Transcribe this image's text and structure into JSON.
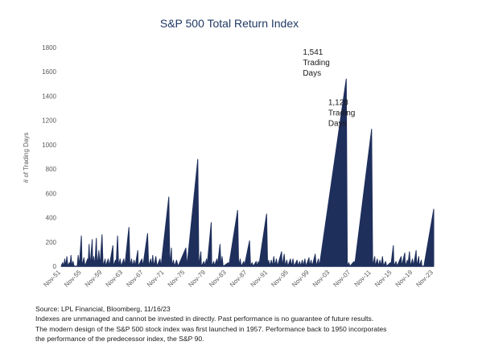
{
  "chart_data": {
    "type": "area",
    "title": "S&P 500 Total Return Index",
    "ylabel": "# of Trading Days",
    "xlabel": "",
    "ylim": [
      0,
      1800
    ],
    "yticks": [
      0,
      200,
      400,
      600,
      800,
      1000,
      1200,
      1400,
      1600,
      1800
    ],
    "xlim": [
      1951.9,
      2023.9
    ],
    "xtick_labels": [
      "Nov-51",
      "Nov-55",
      "Nov-59",
      "Nov-63",
      "Nov-67",
      "Nov-71",
      "Nov-75",
      "Nov-79",
      "Nov-83",
      "Nov-87",
      "Nov-91",
      "Nov-95",
      "Nov-99",
      "Nov-03",
      "Nov-07",
      "Nov-11",
      "Nov-15",
      "Nov-19",
      "Nov-23"
    ],
    "grid": false,
    "legend": "none",
    "color": "#1f2f5c",
    "series": [
      {
        "values": [
          [
            1951.9,
            0
          ],
          [
            1952.2,
            30
          ],
          [
            1952.4,
            0
          ],
          [
            1952.6,
            60
          ],
          [
            1952.8,
            0
          ],
          [
            1953.0,
            80
          ],
          [
            1953.2,
            0
          ],
          [
            1953.5,
            30
          ],
          [
            1953.6,
            0
          ],
          [
            1953.8,
            90
          ],
          [
            1954.0,
            0
          ],
          [
            1954.2,
            40
          ],
          [
            1954.4,
            0
          ],
          [
            1955.0,
            0
          ],
          [
            1955.2,
            90
          ],
          [
            1955.4,
            0
          ],
          [
            1955.8,
            250
          ],
          [
            1955.95,
            0
          ],
          [
            1956.3,
            70
          ],
          [
            1956.5,
            0
          ],
          [
            1957.0,
            60
          ],
          [
            1957.1,
            0
          ],
          [
            1957.3,
            180
          ],
          [
            1957.5,
            0
          ],
          [
            1957.9,
            220
          ],
          [
            1958.0,
            0
          ],
          [
            1958.2,
            80
          ],
          [
            1958.4,
            0
          ],
          [
            1958.7,
            230
          ],
          [
            1958.85,
            0
          ],
          [
            1959.2,
            130
          ],
          [
            1959.4,
            0
          ],
          [
            1959.8,
            260
          ],
          [
            1960.0,
            0
          ],
          [
            1960.4,
            60
          ],
          [
            1960.5,
            0
          ],
          [
            1961.0,
            60
          ],
          [
            1961.2,
            0
          ],
          [
            1961.9,
            170
          ],
          [
            1962.0,
            0
          ],
          [
            1962.4,
            50
          ],
          [
            1962.5,
            0
          ],
          [
            1962.8,
            250
          ],
          [
            1963.0,
            0
          ],
          [
            1963.3,
            60
          ],
          [
            1963.5,
            0
          ],
          [
            1964.0,
            60
          ],
          [
            1964.2,
            0
          ],
          [
            1965.0,
            320
          ],
          [
            1965.2,
            0
          ],
          [
            1965.5,
            60
          ],
          [
            1965.7,
            0
          ],
          [
            1966.0,
            50
          ],
          [
            1966.2,
            0
          ],
          [
            1966.7,
            130
          ],
          [
            1966.8,
            0
          ],
          [
            1967.5,
            60
          ],
          [
            1967.7,
            0
          ],
          [
            1968.6,
            270
          ],
          [
            1968.8,
            0
          ],
          [
            1969.2,
            60
          ],
          [
            1969.4,
            0
          ],
          [
            1969.6,
            90
          ],
          [
            1969.8,
            0
          ],
          [
            1970.2,
            80
          ],
          [
            1970.4,
            0
          ],
          [
            1971.0,
            60
          ],
          [
            1971.2,
            0
          ],
          [
            1972.7,
            570
          ],
          [
            1972.9,
            0
          ],
          [
            1973.2,
            150
          ],
          [
            1973.3,
            0
          ],
          [
            1973.6,
            50
          ],
          [
            1973.8,
            0
          ],
          [
            1974.2,
            50
          ],
          [
            1974.5,
            0
          ],
          [
            1976.0,
            150
          ],
          [
            1976.2,
            0
          ],
          [
            1978.3,
            880
          ],
          [
            1978.5,
            0
          ],
          [
            1978.9,
            120
          ],
          [
            1979.0,
            0
          ],
          [
            1979.5,
            40
          ],
          [
            1979.6,
            0
          ],
          [
            1980.0,
            60
          ],
          [
            1980.1,
            0
          ],
          [
            1980.9,
            360
          ],
          [
            1981.0,
            0
          ],
          [
            1981.4,
            40
          ],
          [
            1981.5,
            0
          ],
          [
            1982.0,
            60
          ],
          [
            1982.1,
            0
          ],
          [
            1982.6,
            180
          ],
          [
            1982.8,
            0
          ],
          [
            1983.0,
            80
          ],
          [
            1983.2,
            0
          ],
          [
            1984.2,
            30
          ],
          [
            1984.3,
            0
          ],
          [
            1986.0,
            460
          ],
          [
            1986.2,
            0
          ],
          [
            1986.5,
            60
          ],
          [
            1986.7,
            0
          ],
          [
            1987.2,
            40
          ],
          [
            1987.3,
            0
          ],
          [
            1988.3,
            210
          ],
          [
            1988.5,
            0
          ],
          [
            1988.8,
            30
          ],
          [
            1989.0,
            0
          ],
          [
            1989.6,
            40
          ],
          [
            1989.7,
            0
          ],
          [
            1990.0,
            40
          ],
          [
            1990.1,
            0
          ],
          [
            1991.6,
            430
          ],
          [
            1991.8,
            0
          ],
          [
            1992.0,
            50
          ],
          [
            1992.2,
            0
          ],
          [
            1992.5,
            50
          ],
          [
            1992.7,
            0
          ],
          [
            1993.0,
            80
          ],
          [
            1993.2,
            0
          ],
          [
            1993.5,
            60
          ],
          [
            1993.7,
            0
          ],
          [
            1994.5,
            120
          ],
          [
            1994.6,
            0
          ],
          [
            1995.0,
            100
          ],
          [
            1995.2,
            0
          ],
          [
            1995.5,
            50
          ],
          [
            1995.7,
            0
          ],
          [
            1996.2,
            60
          ],
          [
            1996.4,
            0
          ],
          [
            1996.7,
            60
          ],
          [
            1996.9,
            0
          ],
          [
            1997.5,
            50
          ],
          [
            1997.7,
            0
          ],
          [
            1998.0,
            40
          ],
          [
            1998.2,
            0
          ],
          [
            1998.5,
            50
          ],
          [
            1998.7,
            0
          ],
          [
            1999.0,
            60
          ],
          [
            1999.2,
            0
          ],
          [
            1999.8,
            70
          ],
          [
            1999.9,
            0
          ],
          [
            2000.2,
            50
          ],
          [
            2000.4,
            0
          ],
          [
            2001.0,
            100
          ],
          [
            2001.2,
            0
          ],
          [
            2001.6,
            60
          ],
          [
            2001.8,
            0
          ],
          [
            2007.0,
            1541
          ],
          [
            2007.2,
            0
          ],
          [
            2007.5,
            30
          ],
          [
            2007.7,
            0
          ],
          [
            2008.5,
            40
          ],
          [
            2008.6,
            0
          ],
          [
            2011.9,
            1128
          ],
          [
            2012.1,
            0
          ],
          [
            2012.5,
            80
          ],
          [
            2012.6,
            0
          ],
          [
            2013.0,
            60
          ],
          [
            2013.2,
            0
          ],
          [
            2013.5,
            50
          ],
          [
            2013.7,
            0
          ],
          [
            2014.0,
            80
          ],
          [
            2014.2,
            0
          ],
          [
            2014.6,
            40
          ],
          [
            2014.8,
            0
          ],
          [
            2015.5,
            30
          ],
          [
            2015.6,
            0
          ],
          [
            2016.1,
            170
          ],
          [
            2016.2,
            0
          ],
          [
            2016.6,
            40
          ],
          [
            2016.8,
            0
          ],
          [
            2017.6,
            80
          ],
          [
            2017.7,
            0
          ],
          [
            2018.3,
            110
          ],
          [
            2018.4,
            0
          ],
          [
            2018.8,
            50
          ],
          [
            2018.9,
            0
          ],
          [
            2019.2,
            120
          ],
          [
            2019.4,
            0
          ],
          [
            2019.8,
            60
          ],
          [
            2020.0,
            0
          ],
          [
            2020.5,
            130
          ],
          [
            2020.6,
            0
          ],
          [
            2021.0,
            80
          ],
          [
            2021.1,
            0
          ],
          [
            2021.5,
            50
          ],
          [
            2021.6,
            0
          ],
          [
            2022.0,
            0
          ],
          [
            2023.9,
            470
          ]
        ]
      }
    ],
    "annotations": [
      {
        "lines": [
          "1,541",
          "Trading",
          "Days"
        ],
        "x": 2007.0,
        "y": 1541
      },
      {
        "lines": [
          "1,128",
          "Trading",
          "Days"
        ],
        "x": 2011.9,
        "y": 1128
      }
    ]
  },
  "footer": {
    "source": "Source: LPL Financial, Bloomberg, 11/16/23",
    "disclaimer_lines": [
      "Indexes are unmanaged and cannot be invested in directly. Past performance is no guarantee of future results.",
      "The modern design of the S&P 500 stock index was first launched in 1957. Performance back to 1950 incorporates",
      "the performance of the predecessor index, the S&P 90."
    ]
  }
}
